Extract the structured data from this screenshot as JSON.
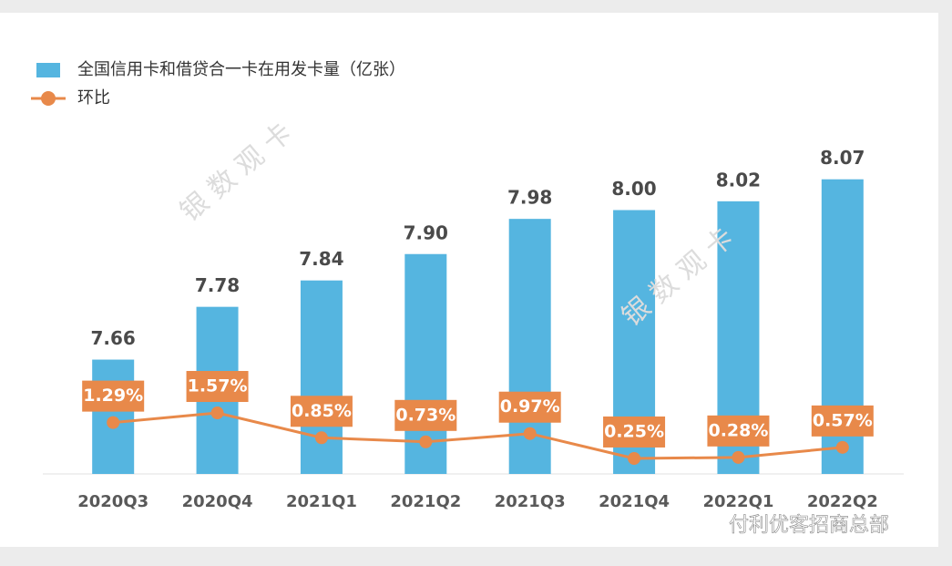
{
  "chart_data": {
    "type": "bar",
    "categories": [
      "2020Q3",
      "2020Q4",
      "2021Q1",
      "2021Q2",
      "2021Q3",
      "2021Q4",
      "2022Q1",
      "2022Q2"
    ],
    "series": [
      {
        "name": "全国信用卡和借贷合一卡在用发卡量（亿张）",
        "type": "bar",
        "color": "#55b5e0",
        "values": [
          7.66,
          7.78,
          7.84,
          7.9,
          7.98,
          8.0,
          8.02,
          8.07
        ],
        "value_labels": [
          "7.66",
          "7.78",
          "7.84",
          "7.90",
          "7.98",
          "8.00",
          "8.02",
          "8.07"
        ]
      },
      {
        "name": "环比",
        "type": "line",
        "axis": "y2",
        "color": "#e8894a",
        "values": [
          1.29,
          1.57,
          0.85,
          0.73,
          0.97,
          0.25,
          0.28,
          0.57
        ],
        "value_labels": [
          "1.29%",
          "1.57%",
          "0.85%",
          "0.73%",
          "0.97%",
          "0.25%",
          "0.28%",
          "0.57%"
        ]
      }
    ],
    "ylim": [
      7.4,
      8.2
    ],
    "y2lim": [
      -0.2,
      10
    ],
    "legend": "top-left",
    "watermarks": [
      "银 数 观 卡",
      "银 数 观 卡"
    ],
    "footer": "付利优客招商总部"
  }
}
